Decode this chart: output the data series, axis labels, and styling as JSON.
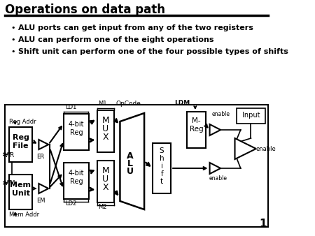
{
  "title": "Operations on data path",
  "bullets": [
    "ALU ports can get input from any of the two registers",
    "ALU can perform one of the eight operations",
    "Shift unit can perform one of the four possible types of shifts"
  ],
  "bg_color": "#ffffff",
  "text_color": "#000000",
  "page_number": "1"
}
